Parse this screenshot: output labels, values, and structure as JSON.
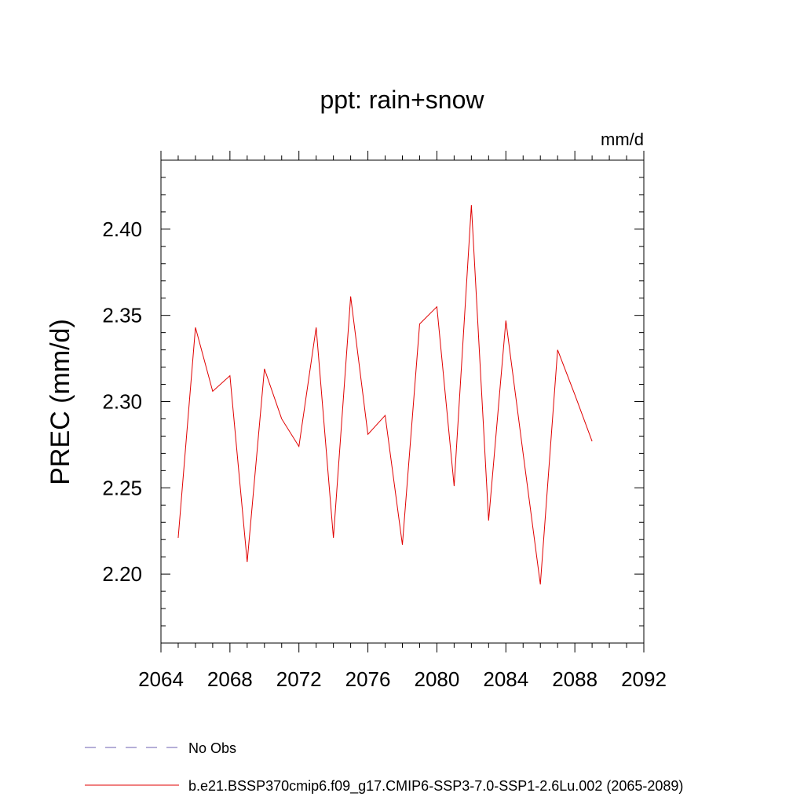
{
  "chart_data": {
    "type": "line",
    "title": "ppt: rain+snow",
    "units": "mm/d",
    "ylabel": "PREC  (mm/d)",
    "xlabel": "",
    "xlim": [
      2064,
      2092
    ],
    "ylim": [
      2.16,
      2.44
    ],
    "x_ticks": [
      "2064",
      "2068",
      "2072",
      "2076",
      "2080",
      "2084",
      "2088",
      "2092"
    ],
    "y_ticks": [
      "2.20",
      "2.25",
      "2.30",
      "2.35",
      "2.40"
    ],
    "grid": false,
    "legend_position": "bottom-left",
    "legend": [
      {
        "label": "No Obs",
        "color": "#6b5fb0",
        "style": "dashed"
      },
      {
        "label": "b.e21.BSSP370cmip6.f09_g17.CMIP6-SSP3-7.0-SSP1-2.6Lu.002 (2065-2089)",
        "color": "#e00000",
        "style": "solid"
      }
    ],
    "series": [
      {
        "color": "#e00000",
        "x": [
          2065,
          2066,
          2067,
          2068,
          2069,
          2070,
          2071,
          2072,
          2073,
          2074,
          2075,
          2076,
          2077,
          2078,
          2079,
          2080,
          2081,
          2082,
          2083,
          2084,
          2085,
          2086,
          2087,
          2088,
          2089
        ],
        "y": [
          2.221,
          2.343,
          2.306,
          2.315,
          2.207,
          2.319,
          2.29,
          2.274,
          2.343,
          2.221,
          2.361,
          2.281,
          2.292,
          2.217,
          2.345,
          2.355,
          2.251,
          2.414,
          2.231,
          2.347,
          2.27,
          2.194,
          2.33,
          2.304,
          2.277
        ]
      }
    ]
  }
}
